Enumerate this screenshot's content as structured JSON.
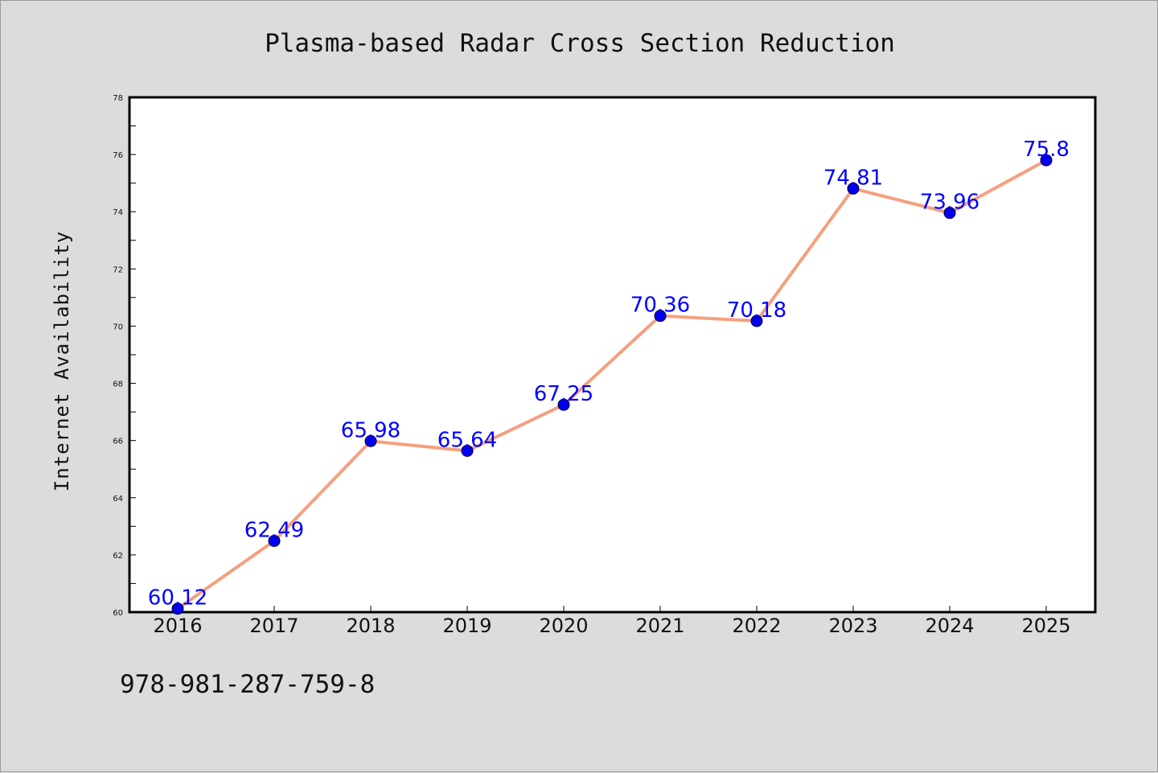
{
  "chart_data": {
    "type": "line",
    "title": "Plasma-based Radar Cross Section Reduction",
    "xlabel": "",
    "ylabel": "Internet Availability",
    "categories": [
      "2016",
      "2017",
      "2018",
      "2019",
      "2020",
      "2021",
      "2022",
      "2023",
      "2024",
      "2025"
    ],
    "series": [
      {
        "values": [
          60.12,
          62.49,
          65.98,
          65.64,
          67.25,
          70.36,
          70.18,
          74.81,
          73.96,
          75.8
        ],
        "data_labels": [
          "60.12",
          "62.49",
          "65.98",
          "65.64",
          "67.25",
          "70.36",
          "70.18",
          "74.81",
          "73.96",
          "75.8"
        ]
      }
    ],
    "ylim": [
      60,
      78
    ],
    "yticks": [
      "60",
      "62",
      "64",
      "66",
      "68",
      "70",
      "72",
      "74",
      "76",
      "78"
    ],
    "grid": false,
    "colors": {
      "line": "#f4a07f",
      "marker": "#0000ee",
      "data_label": "#0000ff",
      "background": "#dcdcdc",
      "plot_area": "#ffffff"
    }
  },
  "footer": {
    "code": "978-981-287-759-8"
  }
}
